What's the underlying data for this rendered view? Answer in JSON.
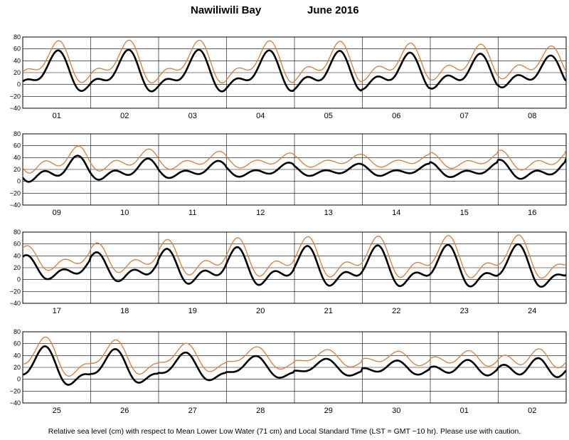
{
  "title": {
    "location": "Nawiliwili Bay",
    "month": "June  2016"
  },
  "footnote": "Relative sea level (cm) with respect to Mean Lower Low Water (71 cm) and Local Standard Time (LST = GMT −10 hr). Please use with caution.",
  "colors": {
    "observed": "#000000",
    "predicted": "#e07b32",
    "grid": "#000000",
    "frame": "#000000"
  },
  "chart_data": {
    "type": "line",
    "ylabel": "",
    "xlabel": "",
    "ylim": [
      -40,
      80
    ],
    "yticks": [
      "80",
      "60",
      "40",
      "20",
      "0",
      "−20",
      "−40"
    ],
    "grid": "horizontal and vertical (day boundaries)",
    "series": [
      {
        "key": "observed",
        "description_visible": false,
        "style": "thick black line",
        "diurnal_amp": [
          27,
          27,
          27,
          26,
          24,
          22,
          20,
          18,
          14,
          11,
          9,
          7,
          6,
          6,
          8,
          10,
          13,
          16,
          20,
          22,
          24,
          25,
          26,
          28,
          26,
          23,
          19,
          15,
          11,
          7,
          6,
          6
        ],
        "semidiurnal_amp": [
          14,
          15,
          15,
          15,
          16,
          15,
          15,
          14,
          12,
          10,
          8,
          7,
          6,
          6,
          7,
          9,
          11,
          13,
          15,
          16,
          16,
          16,
          16,
          15,
          13,
          11,
          9,
          7,
          6,
          7,
          9,
          12
        ]
      },
      {
        "key": "predicted",
        "description_visible": false,
        "style": "thin orange line",
        "offset_cm": 16
      }
    ],
    "panels": [
      {
        "days": [
          "01",
          "02",
          "03",
          "04",
          "05",
          "06",
          "07",
          "08"
        ]
      },
      {
        "days": [
          "09",
          "10",
          "11",
          "12",
          "13",
          "14",
          "15",
          "16"
        ]
      },
      {
        "days": [
          "17",
          "18",
          "19",
          "20",
          "21",
          "22",
          "23",
          "24"
        ]
      },
      {
        "days": [
          "25",
          "26",
          "27",
          "28",
          "29",
          "30",
          "01",
          "02"
        ]
      }
    ]
  }
}
